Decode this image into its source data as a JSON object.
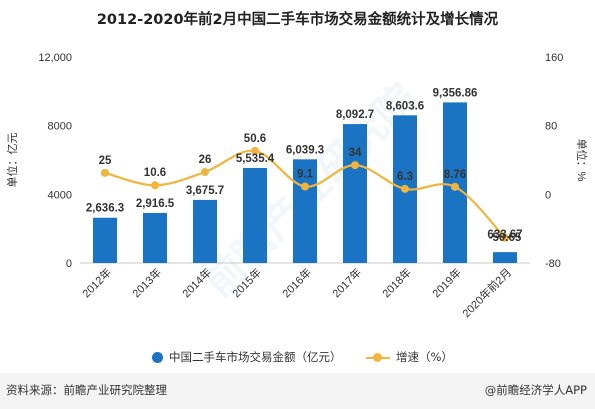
{
  "title": "2012-2020年前2月中国二手车市场交易金额统计及增长情况",
  "footer": {
    "source": "资料来源：前瞻产业研究院整理",
    "brand": "@前瞻经济学人APP"
  },
  "watermark": "前瞻产业研究院",
  "chart_data": {
    "type": "bar",
    "title": "2012-2020年前2月中国二手车市场交易金额统计及增长情况",
    "categories": [
      "2012年",
      "2013年",
      "2014年",
      "2015年",
      "2016年",
      "2017年",
      "2018年",
      "2019年",
      "2020年前2月"
    ],
    "series": [
      {
        "name": "中国二手车市场交易金额（亿元）",
        "type": "bar",
        "axis": "left",
        "color": "#1b74c3",
        "values": [
          2636.3,
          2916.5,
          3675.7,
          5535.4,
          6039.3,
          8092.7,
          8603.6,
          9356.86,
          633.67
        ],
        "labels": [
          "2,636.3",
          "2,916.5",
          "3,675.7",
          "5,535.4",
          "6,039.3",
          "8,092.7",
          "8,603.6",
          "9,356.86",
          "633.67"
        ]
      },
      {
        "name": "增速（%）",
        "type": "line",
        "axis": "right",
        "color": "#f0b53c",
        "values": [
          25,
          10.6,
          26,
          50.6,
          9.1,
          34,
          6.3,
          8.76,
          -50.65
        ],
        "labels": [
          "25",
          "10.6",
          "26",
          "50.6",
          "9.1",
          "34",
          "6.3",
          "8.76",
          "-50.65"
        ]
      }
    ],
    "ylabel": "单位：亿元",
    "y2label": "单位：%",
    "ylim": [
      0,
      12000
    ],
    "yticks": [
      "0",
      "4000",
      "8000",
      "12,000"
    ],
    "yticks_values": [
      0,
      4000,
      8000,
      12000
    ],
    "y2lim": [
      -80,
      160
    ],
    "y2ticks": [
      "-80",
      "0",
      "80",
      "160"
    ],
    "y2ticks_values": [
      -80,
      0,
      80,
      160
    ],
    "legend": "bottom",
    "grid": false
  }
}
